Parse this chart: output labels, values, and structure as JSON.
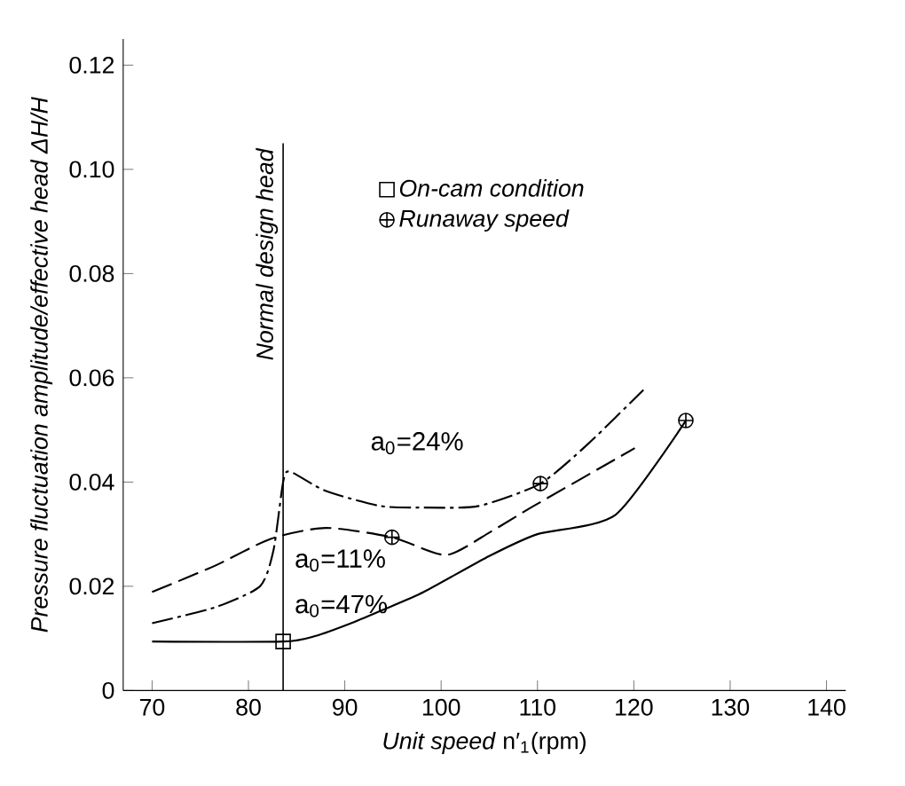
{
  "chart_data": {
    "type": "line",
    "xlabel": "*Unit speed* n′$_{1}$(rpm)",
    "ylabel": "Pressure fluctuation amplitude/effective head ΔH/H",
    "xlim": [
      67,
      142
    ],
    "ylim": [
      0,
      0.125
    ],
    "xticks": [
      70,
      80,
      90,
      100,
      110,
      120,
      130,
      140
    ],
    "yticks": [
      0,
      0.02,
      0.04,
      0.06,
      0.08,
      {
        "value": 0.1,
        "label": "0.10"
      },
      0.12
    ],
    "legend": "top",
    "series": [
      {
        "line_style": "solid",
        "color": "#000000",
        "x": [
          70,
          83.6,
          87,
          90.9,
          94,
          98.2,
          105,
          110,
          118.1,
          125.4
        ],
        "values": [
          0.0094,
          0.0094,
          0.0105,
          0.0131,
          0.0155,
          0.0189,
          0.0258,
          0.03,
          0.0337,
          0.0518
        ]
      },
      {
        "line_style": "dashdot",
        "color": "#000000",
        "x": [
          70,
          76.6,
          81.2,
          82.6,
          83.6,
          84.3,
          88,
          93.7,
          98.2,
          103.9,
          110.3,
          115.3,
          121
        ],
        "values": [
          0.0129,
          0.016,
          0.02,
          0.0269,
          0.04,
          0.042,
          0.0383,
          0.0354,
          0.0351,
          0.0354,
          0.0397,
          0.0474,
          0.0577
        ]
      },
      {
        "line_style": "dashed",
        "color": "#000000",
        "x": [
          70,
          76.6,
          82.3,
          88,
          94.9,
          100.5,
          105,
          109.6,
          120.1
        ],
        "values": [
          0.0189,
          0.024,
          0.0291,
          0.0312,
          0.0294,
          0.026,
          0.0303,
          0.0354,
          0.0465
        ]
      },
      {
        "type": "scatter",
        "name": "On-cam condition",
        "marker": "square",
        "color": "#000000",
        "x": [
          83.6
        ],
        "values": [
          0.0094
        ]
      },
      {
        "type": "scatter",
        "name": "Runaway speed",
        "color": "#000000",
        "x": [
          94.9,
          110.3,
          125.4
        ],
        "values": [
          0.0294,
          0.0397,
          0.0518
        ]
      }
    ],
    "ref_lines": [
      {
        "axis": "x",
        "value": 83.6,
        "label": "Normal design head"
      }
    ],
    "annotations": [
      "a$_{0}$=24%",
      "a$_{0}$=11%",
      "a$_{0}$=47%"
    ]
  }
}
